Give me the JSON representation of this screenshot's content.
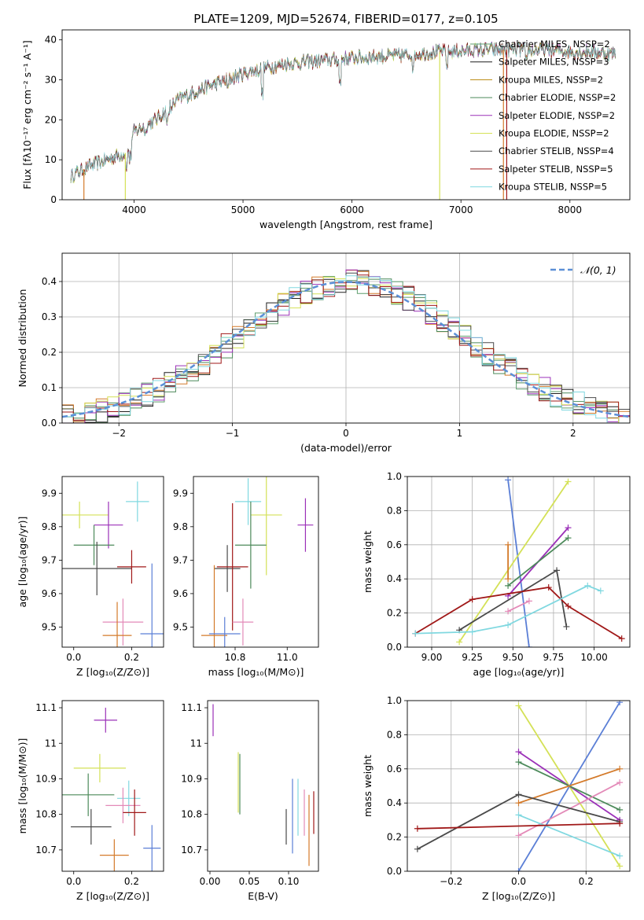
{
  "title": "PLATE=1209, MJD=52674, FIBERID=0177, z=0.105",
  "colors": [
    "#5f9e6e",
    "#1f1f1f",
    "#b8860b",
    "#4c8a5a",
    "#9b30b8",
    "#d4e157",
    "#4a4a4a",
    "#a01818",
    "#80d8e0",
    "#d47a2a",
    "#e38ab8",
    "#5b7fd6"
  ],
  "chart_data": [
    {
      "id": "spectrum",
      "type": "line",
      "xlabel": "wavelength [Angstrom, rest frame]",
      "ylabel": "Flux [fλ10⁻¹⁷ erg cm⁻² s⁻¹ A⁻¹]",
      "xlim": [
        3340,
        8550
      ],
      "ylim": [
        0,
        42.5
      ],
      "xticks": [
        4000,
        5000,
        6000,
        7000,
        8000
      ],
      "yticks": [
        0,
        10,
        20,
        30,
        40
      ],
      "legend_position": "right",
      "series": [
        {
          "name": "Chabrier MILES, NSSP=2",
          "color": "#5f9e6e"
        },
        {
          "name": "Salpeter MILES, NSSP=3",
          "color": "#1f1f1f"
        },
        {
          "name": "Kroupa MILES, NSSP=2",
          "color": "#b8860b"
        },
        {
          "name": "Chabrier ELODIE, NSSP=2",
          "color": "#4c8a5a"
        },
        {
          "name": "Salpeter ELODIE, NSSP=2",
          "color": "#9b30b8"
        },
        {
          "name": "Kroupa ELODIE, NSSP=2",
          "color": "#d4e157"
        },
        {
          "name": "Chabrier STELIB, NSSP=4",
          "color": "#4a4a4a"
        },
        {
          "name": "Salpeter STELIB, NSSP=5",
          "color": "#a01818"
        },
        {
          "name": "Kroupa STELIB, NSSP=5",
          "color": "#80d8e0"
        }
      ],
      "continuum": [
        [
          3420,
          6
        ],
        [
          3600,
          8.5
        ],
        [
          3800,
          10.5
        ],
        [
          3950,
          12
        ],
        [
          4000,
          17
        ],
        [
          4200,
          20
        ],
        [
          4400,
          25
        ],
        [
          4600,
          27.5
        ],
        [
          4800,
          29.5
        ],
        [
          5000,
          31.5
        ],
        [
          5200,
          33
        ],
        [
          5400,
          34
        ],
        [
          5600,
          34.5
        ],
        [
          5800,
          35
        ],
        [
          6000,
          35.5
        ],
        [
          6200,
          35.8
        ],
        [
          6400,
          36
        ],
        [
          6600,
          36.5
        ],
        [
          6800,
          37
        ],
        [
          7000,
          37.2
        ],
        [
          7200,
          37.5
        ],
        [
          7400,
          37.5
        ],
        [
          7600,
          37.5
        ],
        [
          7800,
          37.5
        ],
        [
          8000,
          37
        ],
        [
          8200,
          37
        ],
        [
          8420,
          36.5
        ]
      ],
      "dips": [
        [
          3933,
          3
        ],
        [
          3968,
          3
        ],
        [
          4102,
          2
        ],
        [
          4304,
          3
        ],
        [
          4340,
          2
        ],
        [
          4861,
          2
        ],
        [
          5175,
          6
        ],
        [
          5890,
          6
        ],
        [
          6563,
          3
        ],
        [
          6870,
          3
        ],
        [
          7600,
          3
        ]
      ],
      "spikes": [
        [
          3540,
          0
        ],
        [
          3920,
          0
        ],
        [
          6805,
          0
        ],
        [
          7390,
          0
        ],
        [
          7420,
          0
        ]
      ]
    },
    {
      "id": "residual-hist",
      "type": "bar",
      "xlabel": "(data-model)/error",
      "ylabel": "Normed distribution",
      "xlim": [
        -2.5,
        2.5
      ],
      "ylim": [
        0,
        0.48
      ],
      "xticks": [
        -2,
        -1,
        0,
        1,
        2
      ],
      "xticklabels": [
        "−2",
        "−1",
        "0",
        "1",
        "2"
      ],
      "yticks": [
        0,
        0.1,
        0.2,
        0.3,
        0.4
      ],
      "yticklabels": [
        "0.0",
        "0.1",
        "0.2",
        "0.3",
        "0.4"
      ],
      "grid": true,
      "legend_position": "top-right",
      "bin_width": 0.1,
      "reference": {
        "name": "𝒩(0, 1)",
        "mean": 0,
        "sigma": 1,
        "color": "#5b8fd6"
      },
      "series": [
        {
          "name": "Chabrier MILES",
          "color": "#5f9e6e"
        },
        {
          "name": "Salpeter MILES",
          "color": "#1f1f1f"
        },
        {
          "name": "Kroupa MILES",
          "color": "#d47a2a"
        },
        {
          "name": "Chabrier ELODIE",
          "color": "#4c8a5a"
        },
        {
          "name": "Salpeter ELODIE",
          "color": "#9b30b8"
        },
        {
          "name": "Kroupa ELODIE",
          "color": "#d4e157"
        },
        {
          "name": "Chabrier STELIB",
          "color": "#4a4a4a"
        },
        {
          "name": "Salpeter STELIB",
          "color": "#a01818"
        },
        {
          "name": "Kroupa STELIB",
          "color": "#80d8e0"
        }
      ]
    },
    {
      "id": "age-vs-z",
      "type": "scatter",
      "xlabel": "Z [log₁₀(Z/Z⊙)]",
      "ylabel": "age  [log₁₀(age/yr)]",
      "xlim": [
        -0.04,
        0.31
      ],
      "ylim": [
        9.44,
        9.95
      ],
      "xticks": [
        0.0,
        0.2
      ],
      "xticklabels": [
        "0.0",
        "0.2"
      ],
      "yticks": [
        9.5,
        9.6,
        9.7,
        9.8,
        9.9
      ],
      "points": [
        {
          "x": 0.02,
          "y": 9.835,
          "xerr": 0.1,
          "yerr": 0.04,
          "color": "#d4e157"
        },
        {
          "x": 0.22,
          "y": 9.875,
          "xerr": 0.04,
          "yerr": 0.06,
          "color": "#80d8e0"
        },
        {
          "x": 0.12,
          "y": 9.805,
          "xerr": 0.05,
          "yerr": 0.07,
          "color": "#9b30b8"
        },
        {
          "x": 0.07,
          "y": 9.745,
          "xerr": 0.07,
          "yerr": 0.06,
          "color": "#4c8a5a"
        },
        {
          "x": 0.08,
          "y": 9.675,
          "xerr": 0.12,
          "yerr": 0.08,
          "color": "#4a4a4a"
        },
        {
          "x": 0.2,
          "y": 9.68,
          "xerr": 0.05,
          "yerr": 0.05,
          "color": "#a01818"
        },
        {
          "x": 0.17,
          "y": 9.515,
          "xerr": 0.07,
          "yerr": 0.07,
          "color": "#e38ab8"
        },
        {
          "x": 0.15,
          "y": 9.475,
          "xerr": 0.05,
          "yerr": 0.1,
          "color": "#d47a2a"
        },
        {
          "x": 0.27,
          "y": 9.48,
          "xerr": 0.04,
          "yerr": 0.21,
          "color": "#5b7fd6"
        }
      ]
    },
    {
      "id": "age-vs-mass",
      "type": "scatter",
      "xlabel": "mass [log₁₀(M/M⊙)]",
      "ylabel": "",
      "xlim": [
        10.64,
        11.12
      ],
      "ylim": [
        9.44,
        9.95
      ],
      "xticks": [
        10.8,
        11.0
      ],
      "xticklabels": [
        "10.8",
        "11.0"
      ],
      "yticks": [
        9.5,
        9.6,
        9.7,
        9.8,
        9.9
      ],
      "points": [
        {
          "x": 10.92,
          "y": 9.835,
          "xerr": 0.06,
          "yerr": 0.18,
          "color": "#d4e157"
        },
        {
          "x": 10.85,
          "y": 9.875,
          "xerr": 0.05,
          "yerr": 0.07,
          "color": "#80d8e0"
        },
        {
          "x": 11.07,
          "y": 9.805,
          "xerr": 0.03,
          "yerr": 0.08,
          "color": "#9b30b8"
        },
        {
          "x": 10.86,
          "y": 9.745,
          "xerr": 0.06,
          "yerr": 0.13,
          "color": "#4c8a5a"
        },
        {
          "x": 10.77,
          "y": 9.675,
          "xerr": 0.05,
          "yerr": 0.07,
          "color": "#4a4a4a"
        },
        {
          "x": 10.79,
          "y": 9.68,
          "xerr": 0.06,
          "yerr": 0.19,
          "color": "#a01818"
        },
        {
          "x": 10.83,
          "y": 9.515,
          "xerr": 0.04,
          "yerr": 0.07,
          "color": "#e38ab8"
        },
        {
          "x": 10.72,
          "y": 9.475,
          "xerr": 0.05,
          "yerr": 0.21,
          "color": "#d47a2a"
        },
        {
          "x": 10.76,
          "y": 9.48,
          "xerr": 0.06,
          "yerr": 0.05,
          "color": "#5b7fd6"
        }
      ]
    },
    {
      "id": "weight-vs-age",
      "type": "line",
      "xlabel": "age  [log₁₀(age/yr)]",
      "ylabel": "mass weight",
      "xlim": [
        8.85,
        10.22
      ],
      "ylim": [
        0,
        1
      ],
      "xticks": [
        9.0,
        9.25,
        9.5,
        9.75,
        10.0
      ],
      "xticklabels": [
        "9.00",
        "9.25",
        "9.50",
        "9.75",
        "10.00"
      ],
      "yticks": [
        0,
        0.2,
        0.4,
        0.6,
        0.8,
        1.0
      ],
      "yticklabels": [
        "0.0",
        "0.2",
        "0.4",
        "0.6",
        "0.8",
        "1.0"
      ],
      "grid": true,
      "series": [
        {
          "color": "#5b7fd6",
          "points": [
            [
              9.47,
              0.98
            ],
            [
              9.6,
              0.0
            ]
          ]
        },
        {
          "color": "#d4e157",
          "points": [
            [
              9.17,
              0.03
            ],
            [
              9.84,
              0.97
            ]
          ]
        },
        {
          "color": "#9b30b8",
          "points": [
            [
              9.47,
              0.3
            ],
            [
              9.84,
              0.7
            ]
          ]
        },
        {
          "color": "#4c8a5a",
          "points": [
            [
              9.47,
              0.36
            ],
            [
              9.84,
              0.64
            ]
          ]
        },
        {
          "color": "#4a4a4a",
          "points": [
            [
              9.17,
              0.1
            ],
            [
              9.77,
              0.45
            ],
            [
              9.83,
              0.12
            ]
          ]
        },
        {
          "color": "#a01818",
          "points": [
            [
              8.9,
              0.08
            ],
            [
              9.25,
              0.28
            ],
            [
              9.72,
              0.35
            ],
            [
              9.84,
              0.24
            ],
            [
              10.17,
              0.05
            ]
          ]
        },
        {
          "color": "#80d8e0",
          "points": [
            [
              8.9,
              0.08
            ],
            [
              9.25,
              0.09
            ],
            [
              9.47,
              0.13
            ],
            [
              9.96,
              0.36
            ],
            [
              10.04,
              0.33
            ]
          ]
        },
        {
          "color": "#d47a2a",
          "points": [
            [
              9.47,
              0.6
            ],
            [
              9.47,
              0.4
            ]
          ]
        },
        {
          "color": "#e38ab8",
          "points": [
            [
              9.47,
              0.21
            ],
            [
              9.6,
              0.27
            ]
          ]
        }
      ]
    },
    {
      "id": "mass-vs-z",
      "type": "scatter",
      "xlabel": "Z [log₁₀(Z/Z⊙)]",
      "ylabel": "mass [log₁₀(M/M⊙)]",
      "xlim": [
        -0.04,
        0.31
      ],
      "ylim": [
        10.64,
        11.12
      ],
      "xticks": [
        0.0,
        0.2
      ],
      "xticklabels": [
        "0.0",
        "0.2"
      ],
      "yticks": [
        10.7,
        10.8,
        10.9,
        11.0,
        11.1
      ],
      "points": [
        {
          "x": 0.11,
          "y": 11.065,
          "xerr": 0.04,
          "yerr": 0.035,
          "color": "#9b30b8"
        },
        {
          "x": 0.09,
          "y": 10.93,
          "xerr": 0.09,
          "yerr": 0.04,
          "color": "#d4e157"
        },
        {
          "x": 0.05,
          "y": 10.855,
          "xerr": 0.09,
          "yerr": 0.06,
          "color": "#4c8a5a"
        },
        {
          "x": 0.19,
          "y": 10.845,
          "xerr": 0.04,
          "yerr": 0.05,
          "color": "#80d8e0"
        },
        {
          "x": 0.17,
          "y": 10.825,
          "xerr": 0.06,
          "yerr": 0.05,
          "color": "#e38ab8"
        },
        {
          "x": 0.21,
          "y": 10.805,
          "xerr": 0.04,
          "yerr": 0.065,
          "color": "#a01818"
        },
        {
          "x": 0.06,
          "y": 10.765,
          "xerr": 0.07,
          "yerr": 0.05,
          "color": "#4a4a4a"
        },
        {
          "x": 0.14,
          "y": 10.685,
          "xerr": 0.05,
          "yerr": 0.045,
          "color": "#d47a2a"
        },
        {
          "x": 0.27,
          "y": 10.705,
          "xerr": 0.03,
          "yerr": 0.065,
          "color": "#5b7fd6"
        }
      ]
    },
    {
      "id": "mass-vs-ebv",
      "type": "scatter",
      "xlabel": "E(B-V)",
      "ylabel": "",
      "xlim": [
        -0.003,
        0.138
      ],
      "ylim": [
        10.64,
        11.12
      ],
      "xticks": [
        0.0,
        0.05,
        0.1
      ],
      "xticklabels": [
        "0.00",
        "0.05",
        "0.10"
      ],
      "yticks": [
        10.7,
        10.8,
        10.9,
        11.0,
        11.1
      ],
      "points": [
        {
          "x": 0.004,
          "y": 11.065,
          "xerr": 0.0,
          "yerr": 0.045,
          "color": "#9b30b8"
        },
        {
          "x": 0.036,
          "y": 10.89,
          "xerr": 0.0,
          "yerr": 0.085,
          "color": "#d4e157"
        },
        {
          "x": 0.038,
          "y": 10.885,
          "xerr": 0.0,
          "yerr": 0.085,
          "color": "#4c8a5a"
        },
        {
          "x": 0.097,
          "y": 10.765,
          "xerr": 0.0,
          "yerr": 0.05,
          "color": "#4a4a4a"
        },
        {
          "x": 0.105,
          "y": 10.795,
          "xerr": 0.0,
          "yerr": 0.105,
          "color": "#5b7fd6"
        },
        {
          "x": 0.112,
          "y": 10.82,
          "xerr": 0.0,
          "yerr": 0.08,
          "color": "#80d8e0"
        },
        {
          "x": 0.12,
          "y": 10.805,
          "xerr": 0.0,
          "yerr": 0.065,
          "color": "#e38ab8"
        },
        {
          "x": 0.126,
          "y": 10.755,
          "xerr": 0.0,
          "yerr": 0.1,
          "color": "#d47a2a"
        },
        {
          "x": 0.132,
          "y": 10.805,
          "xerr": 0.0,
          "yerr": 0.06,
          "color": "#a01818"
        }
      ]
    },
    {
      "id": "weight-vs-z",
      "type": "line",
      "xlabel": "Z [log₁₀(Z/Z⊙)]",
      "ylabel": "mass weight",
      "xlim": [
        -0.33,
        0.33
      ],
      "ylim": [
        0,
        1
      ],
      "xticks": [
        -0.2,
        0.0,
        0.2
      ],
      "xticklabels": [
        "−0.2",
        "0.0",
        "0.2"
      ],
      "yticks": [
        0,
        0.2,
        0.4,
        0.6,
        0.8,
        1.0
      ],
      "yticklabels": [
        "0.0",
        "0.2",
        "0.4",
        "0.6",
        "0.8",
        "1.0"
      ],
      "grid": true,
      "series": [
        {
          "color": "#5b7fd6",
          "points": [
            [
              0.0,
              0.0
            ],
            [
              0.3,
              0.99
            ]
          ]
        },
        {
          "color": "#d4e157",
          "points": [
            [
              0.0,
              0.97
            ],
            [
              0.3,
              0.03
            ]
          ]
        },
        {
          "color": "#9b30b8",
          "points": [
            [
              0.0,
              0.7
            ],
            [
              0.3,
              0.3
            ]
          ]
        },
        {
          "color": "#4c8a5a",
          "points": [
            [
              0.0,
              0.64
            ],
            [
              0.3,
              0.36
            ]
          ]
        },
        {
          "color": "#d47a2a",
          "points": [
            [
              0.0,
              0.4
            ],
            [
              0.3,
              0.6
            ]
          ]
        },
        {
          "color": "#e38ab8",
          "points": [
            [
              0.0,
              0.21
            ],
            [
              0.3,
              0.52
            ]
          ]
        },
        {
          "color": "#80d8e0",
          "points": [
            [
              0.0,
              0.33
            ],
            [
              0.3,
              0.09
            ]
          ]
        },
        {
          "color": "#4a4a4a",
          "points": [
            [
              -0.3,
              0.13
            ],
            [
              0.0,
              0.45
            ],
            [
              0.3,
              0.29
            ]
          ]
        },
        {
          "color": "#a01818",
          "points": [
            [
              -0.3,
              0.25
            ],
            [
              0.3,
              0.28
            ]
          ]
        }
      ]
    }
  ]
}
